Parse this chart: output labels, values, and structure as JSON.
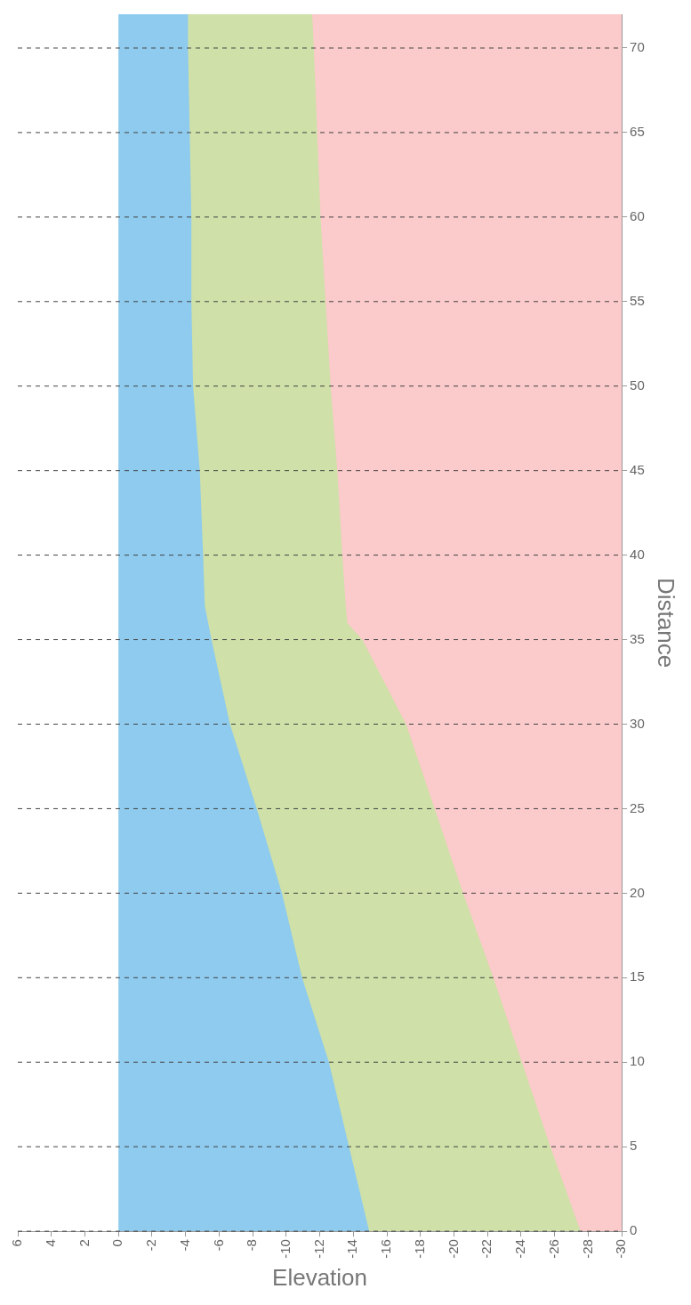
{
  "chart_data": {
    "type": "area",
    "orientation": "horizontal",
    "xlabel": "Elevation",
    "ylabel": "Distance",
    "x": [
      0,
      5,
      10,
      15,
      20,
      25,
      30,
      35,
      36,
      37,
      40,
      45,
      50,
      55,
      60,
      65,
      70,
      72
    ],
    "xlim": [
      6,
      -30
    ],
    "xticks": [
      6,
      4,
      2,
      0,
      -2,
      -4,
      -6,
      -8,
      -10,
      -12,
      -14,
      -16,
      -18,
      -20,
      -22,
      -24,
      -26,
      -28,
      -30
    ],
    "ylim": [
      0,
      72
    ],
    "yticks": [
      0,
      5,
      10,
      15,
      20,
      25,
      30,
      35,
      40,
      45,
      50,
      55,
      60,
      65,
      70
    ],
    "grid": "y",
    "line_style": "dashed",
    "series": [
      {
        "color": "#8ecbee",
        "values": [
          -15,
          -13.8,
          -12.6,
          -11,
          -9.8,
          -8.3,
          -6.7,
          -5.6,
          -5.4,
          -5.2,
          -5.1,
          -4.9,
          -4.5,
          -4.4,
          -4.4,
          -4.3,
          -4.2,
          -4.2
        ]
      },
      {
        "color": "#cfe0a8",
        "values": [
          -15,
          -13.8,
          -12.6,
          -11,
          -9.8,
          -8.3,
          -6.7,
          -5.6,
          -5.4,
          -5.2,
          -5.1,
          -4.9,
          -4.5,
          -4.4,
          -4.4,
          -4.3,
          -4.2,
          -4.2
        ]
      },
      {
        "color": "#fbcaca",
        "values": [
          -27.6,
          -25.8,
          -24.1,
          -22.4,
          -20.6,
          -18.9,
          -17.2,
          -14.6,
          -13.7,
          -13.6,
          -13.4,
          -13.1,
          -12.7,
          -12.4,
          -12.1,
          -11.9,
          -11.7,
          -11.6
        ]
      }
    ]
  }
}
